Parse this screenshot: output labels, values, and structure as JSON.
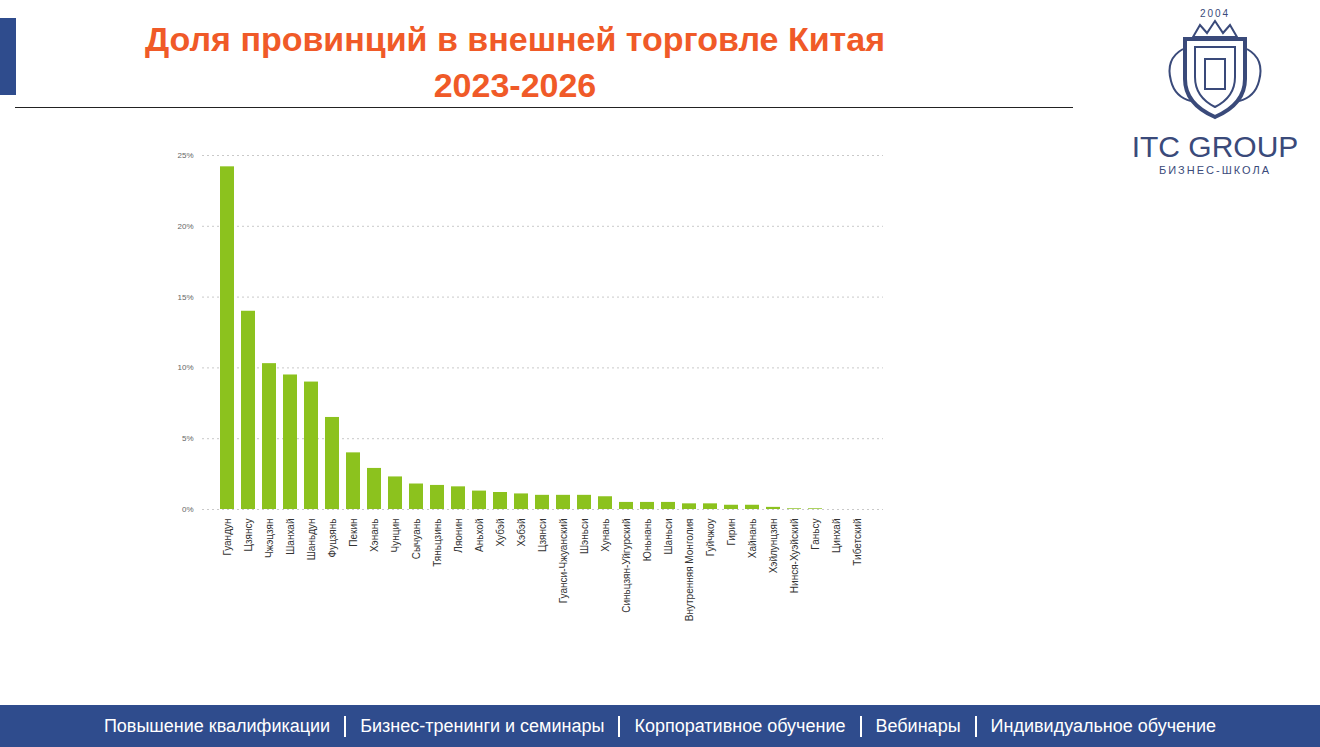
{
  "chart_data": {
    "type": "bar",
    "title": "Доля провинций в внешней торговле Китая",
    "subtitle": "2023-2026",
    "categories": [
      "Гуандун",
      "Цзянсу",
      "Чжэцзян",
      "Шанхай",
      "Шаньдун",
      "Фуцзянь",
      "Пекин",
      "Хэнань",
      "Чунцин",
      "Сычуань",
      "Тяньцзинь",
      "Ляонин",
      "Аньхой",
      "Хубэй",
      "Хэбэй",
      "Цзянси",
      "Гуанси-Чжуанский",
      "Шэньси",
      "Хунань",
      "Синьцзян-Уйгурский",
      "Юньнань",
      "Шаньси",
      "Внутренняя Монголия",
      "Гуйчжоу",
      "Гирин",
      "Хайнань",
      "Хэйлунцзян",
      "Нинся-Хуэйский",
      "Ганьсу",
      "Цинхай",
      "Тибетский"
    ],
    "values": [
      24.2,
      14.0,
      10.3,
      9.5,
      9.0,
      6.5,
      4.0,
      2.9,
      2.3,
      1.8,
      1.7,
      1.6,
      1.3,
      1.2,
      1.1,
      1.0,
      1.0,
      1.0,
      0.9,
      0.5,
      0.5,
      0.5,
      0.4,
      0.4,
      0.3,
      0.3,
      0.15,
      0.05,
      0.05,
      0,
      0
    ],
    "color": "#8cc21e",
    "ylim": [
      0,
      25
    ],
    "yticks": [
      {
        "value": 0,
        "label": "0%"
      },
      {
        "value": 5,
        "label": "5%"
      },
      {
        "value": 10,
        "label": "10%"
      },
      {
        "value": 15,
        "label": "15%"
      },
      {
        "value": 20,
        "label": "20%"
      },
      {
        "value": 25,
        "label": "25%"
      }
    ],
    "grid": true
  },
  "slide": {
    "logo": {
      "year": "2004",
      "name": "ITC GROUP",
      "subtitle": "БИЗНЕС-ШКОЛА"
    },
    "footer": [
      "Повышение квалификации",
      "Бизнес-тренинги и семинары",
      "Корпоративное обучение",
      "Вебинары",
      "Индивидуальное обучение"
    ]
  }
}
